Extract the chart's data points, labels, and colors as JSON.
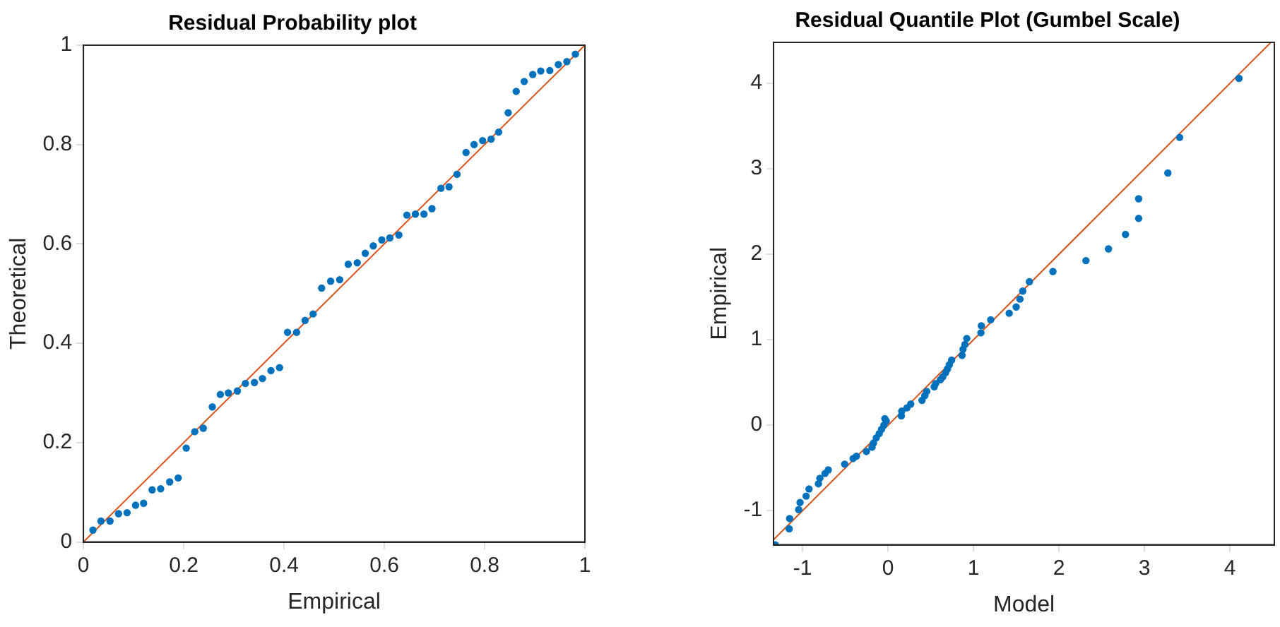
{
  "chart_data": [
    {
      "type": "scatter",
      "title": "Residual Probability plot",
      "xlabel": "Empirical",
      "ylabel": "Theoretical",
      "xlim": [
        0,
        1
      ],
      "ylim": [
        0,
        1
      ],
      "xticks": [
        0,
        0.2,
        0.4,
        0.6,
        0.8,
        1
      ],
      "yticks": [
        0,
        0.2,
        0.4,
        0.6,
        0.8,
        1
      ],
      "grid": false,
      "series": [
        {
          "type": "scatter",
          "marker": "circle",
          "color": "#0072bd",
          "x": [
            0.019,
            0.035,
            0.053,
            0.07,
            0.087,
            0.104,
            0.12,
            0.137,
            0.154,
            0.172,
            0.189,
            0.205,
            0.222,
            0.239,
            0.257,
            0.273,
            0.289,
            0.307,
            0.323,
            0.341,
            0.357,
            0.374,
            0.391,
            0.407,
            0.425,
            0.442,
            0.458,
            0.475,
            0.493,
            0.511,
            0.528,
            0.546,
            0.562,
            0.578,
            0.595,
            0.611,
            0.629,
            0.645,
            0.662,
            0.679,
            0.695,
            0.713,
            0.729,
            0.745,
            0.763,
            0.779,
            0.796,
            0.813,
            0.828,
            0.847,
            0.863,
            0.879,
            0.896,
            0.912,
            0.93,
            0.947,
            0.964,
            0.981
          ],
          "values": [
            0.024,
            0.042,
            0.042,
            0.057,
            0.059,
            0.074,
            0.078,
            0.105,
            0.107,
            0.121,
            0.129,
            0.189,
            0.222,
            0.229,
            0.272,
            0.297,
            0.3,
            0.304,
            0.319,
            0.321,
            0.329,
            0.345,
            0.351,
            0.422,
            0.422,
            0.446,
            0.459,
            0.511,
            0.525,
            0.528,
            0.559,
            0.562,
            0.581,
            0.596,
            0.608,
            0.612,
            0.618,
            0.658,
            0.66,
            0.66,
            0.671,
            0.712,
            0.715,
            0.74,
            0.784,
            0.8,
            0.808,
            0.811,
            0.825,
            0.864,
            0.907,
            0.927,
            0.941,
            0.948,
            0.949,
            0.961,
            0.967,
            0.982
          ]
        },
        {
          "type": "line",
          "color": "#d95319",
          "x": [
            0,
            1
          ],
          "values": [
            0,
            1
          ]
        }
      ]
    },
    {
      "type": "scatter",
      "title": "Residual Quantile Plot (Gumbel Scale)",
      "xlabel": "Model",
      "ylabel": "Empirical",
      "xlim": [
        -1.34,
        4.52
      ],
      "ylim": [
        -1.4,
        4.48
      ],
      "xticks": [
        -1,
        0,
        1,
        2,
        3,
        4
      ],
      "yticks": [
        -1,
        0,
        1,
        2,
        3,
        4
      ],
      "grid": false,
      "series": [
        {
          "type": "scatter",
          "marker": "circle",
          "color": "#0072bd",
          "x": [
            -1.32,
            -1.157,
            -1.152,
            -1.046,
            -1.03,
            -0.959,
            -0.925,
            -0.815,
            -0.798,
            -0.738,
            -0.7,
            -0.508,
            -0.409,
            -0.37,
            -0.254,
            -0.188,
            -0.171,
            -0.138,
            -0.104,
            -0.077,
            -0.049,
            -0.038,
            -0.022,
            0.155,
            0.16,
            0.221,
            0.265,
            0.397,
            0.43,
            0.452,
            0.54,
            0.557,
            0.612,
            0.64,
            0.673,
            0.695,
            0.717,
            0.744,
            0.866,
            0.877,
            0.899,
            0.921,
            1.086,
            1.091,
            1.201,
            1.417,
            1.499,
            1.543,
            1.576,
            1.654,
            1.929,
            2.315,
            2.579,
            2.778,
            2.932,
            2.932,
            3.274,
            3.412,
            4.106
          ],
          "values": [
            -1.4,
            -1.213,
            -1.093,
            -0.988,
            -0.905,
            -0.83,
            -0.747,
            -0.686,
            -0.621,
            -0.566,
            -0.523,
            -0.456,
            -0.39,
            -0.363,
            -0.308,
            -0.258,
            -0.209,
            -0.148,
            -0.099,
            -0.049,
            0,
            0.077,
            0.049,
            0.109,
            0.164,
            0.203,
            0.247,
            0.291,
            0.346,
            0.395,
            0.45,
            0.488,
            0.532,
            0.565,
            0.614,
            0.658,
            0.708,
            0.762,
            0.817,
            0.889,
            0.944,
            1.015,
            1.081,
            1.163,
            1.234,
            1.31,
            1.383,
            1.475,
            1.569,
            1.679,
            1.799,
            1.926,
            2.063,
            2.232,
            2.42,
            2.65,
            2.951,
            3.368,
            4.059
          ]
        },
        {
          "type": "line",
          "color": "#d95319",
          "x": [
            -1.34,
            4.48
          ],
          "values": [
            -1.34,
            4.48
          ]
        }
      ]
    }
  ]
}
